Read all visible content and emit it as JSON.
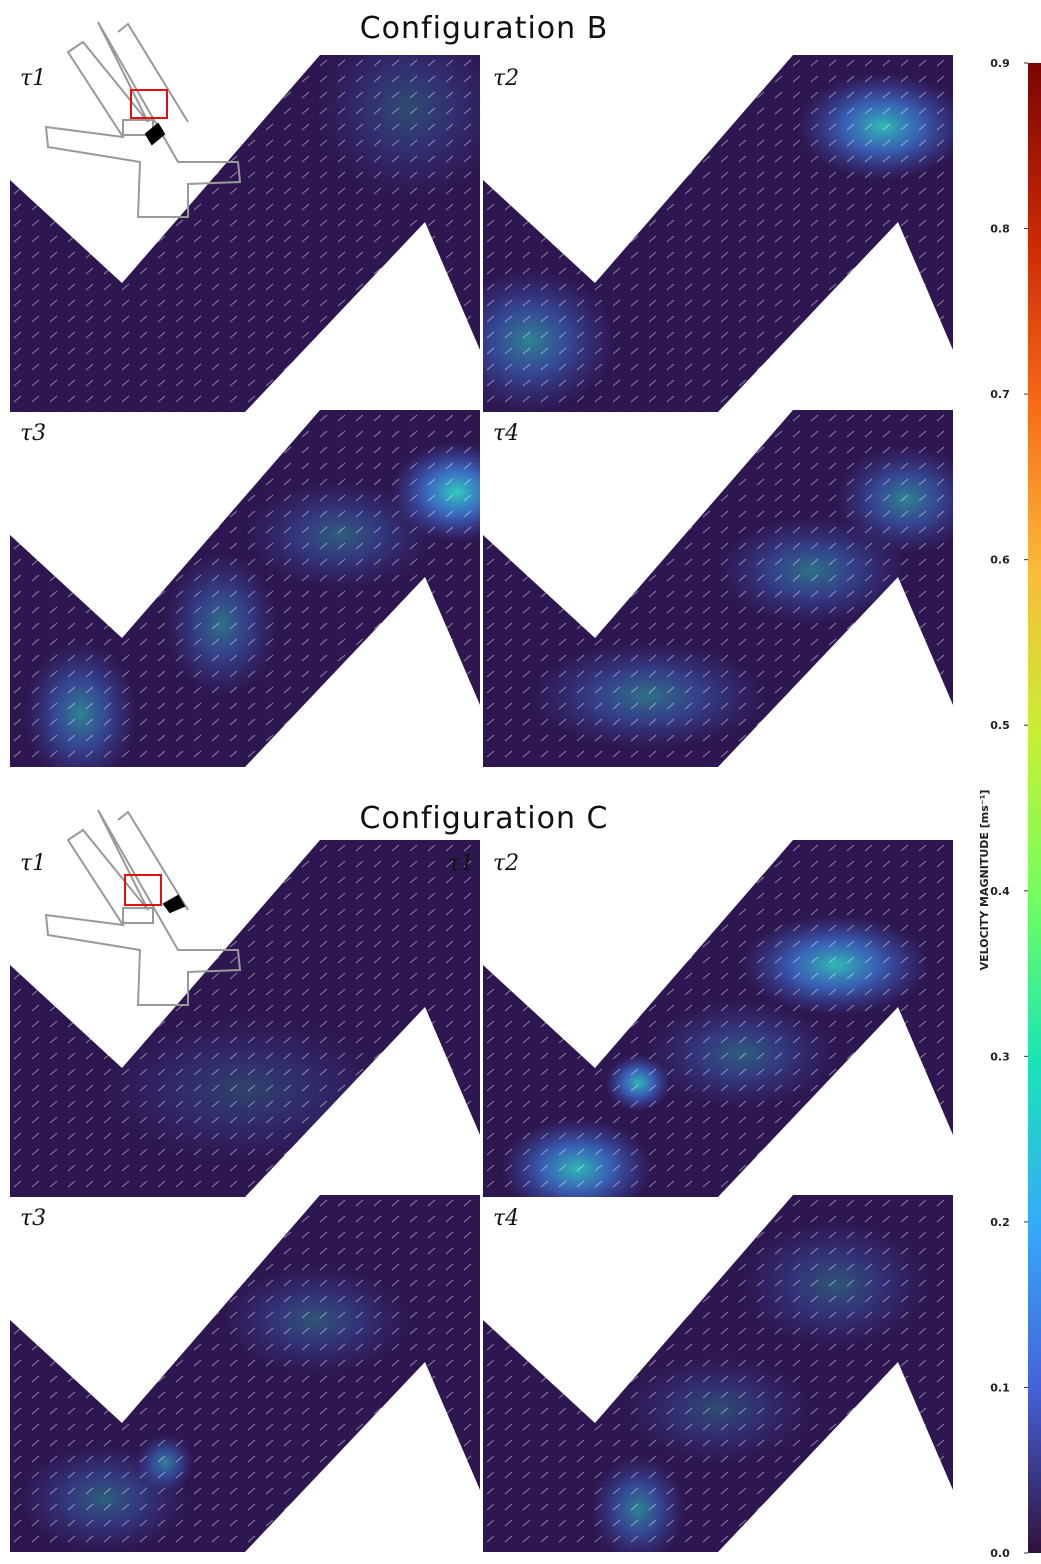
{
  "configurations": [
    {
      "title": "Configuration B",
      "panels": [
        {
          "label": "τ1"
        },
        {
          "label": "τ2"
        },
        {
          "label": "τ3"
        },
        {
          "label": "τ4"
        }
      ]
    },
    {
      "title": "Configuration C",
      "panels": [
        {
          "label": "τ1"
        },
        {
          "label": "τ2"
        },
        {
          "label": "τ3"
        },
        {
          "label": "τ4"
        }
      ],
      "extra_label": "τ1"
    }
  ],
  "colorbar": {
    "label": "VELOCITY MAGNITUDE [ms⁻¹]",
    "range": [
      0,
      0.9
    ],
    "ticks": [
      {
        "value": 0,
        "label": "0.0"
      },
      0.1,
      0.2,
      0.3,
      0.4,
      0.5,
      0.6,
      0.7,
      0.8,
      0.9
    ]
  }
}
